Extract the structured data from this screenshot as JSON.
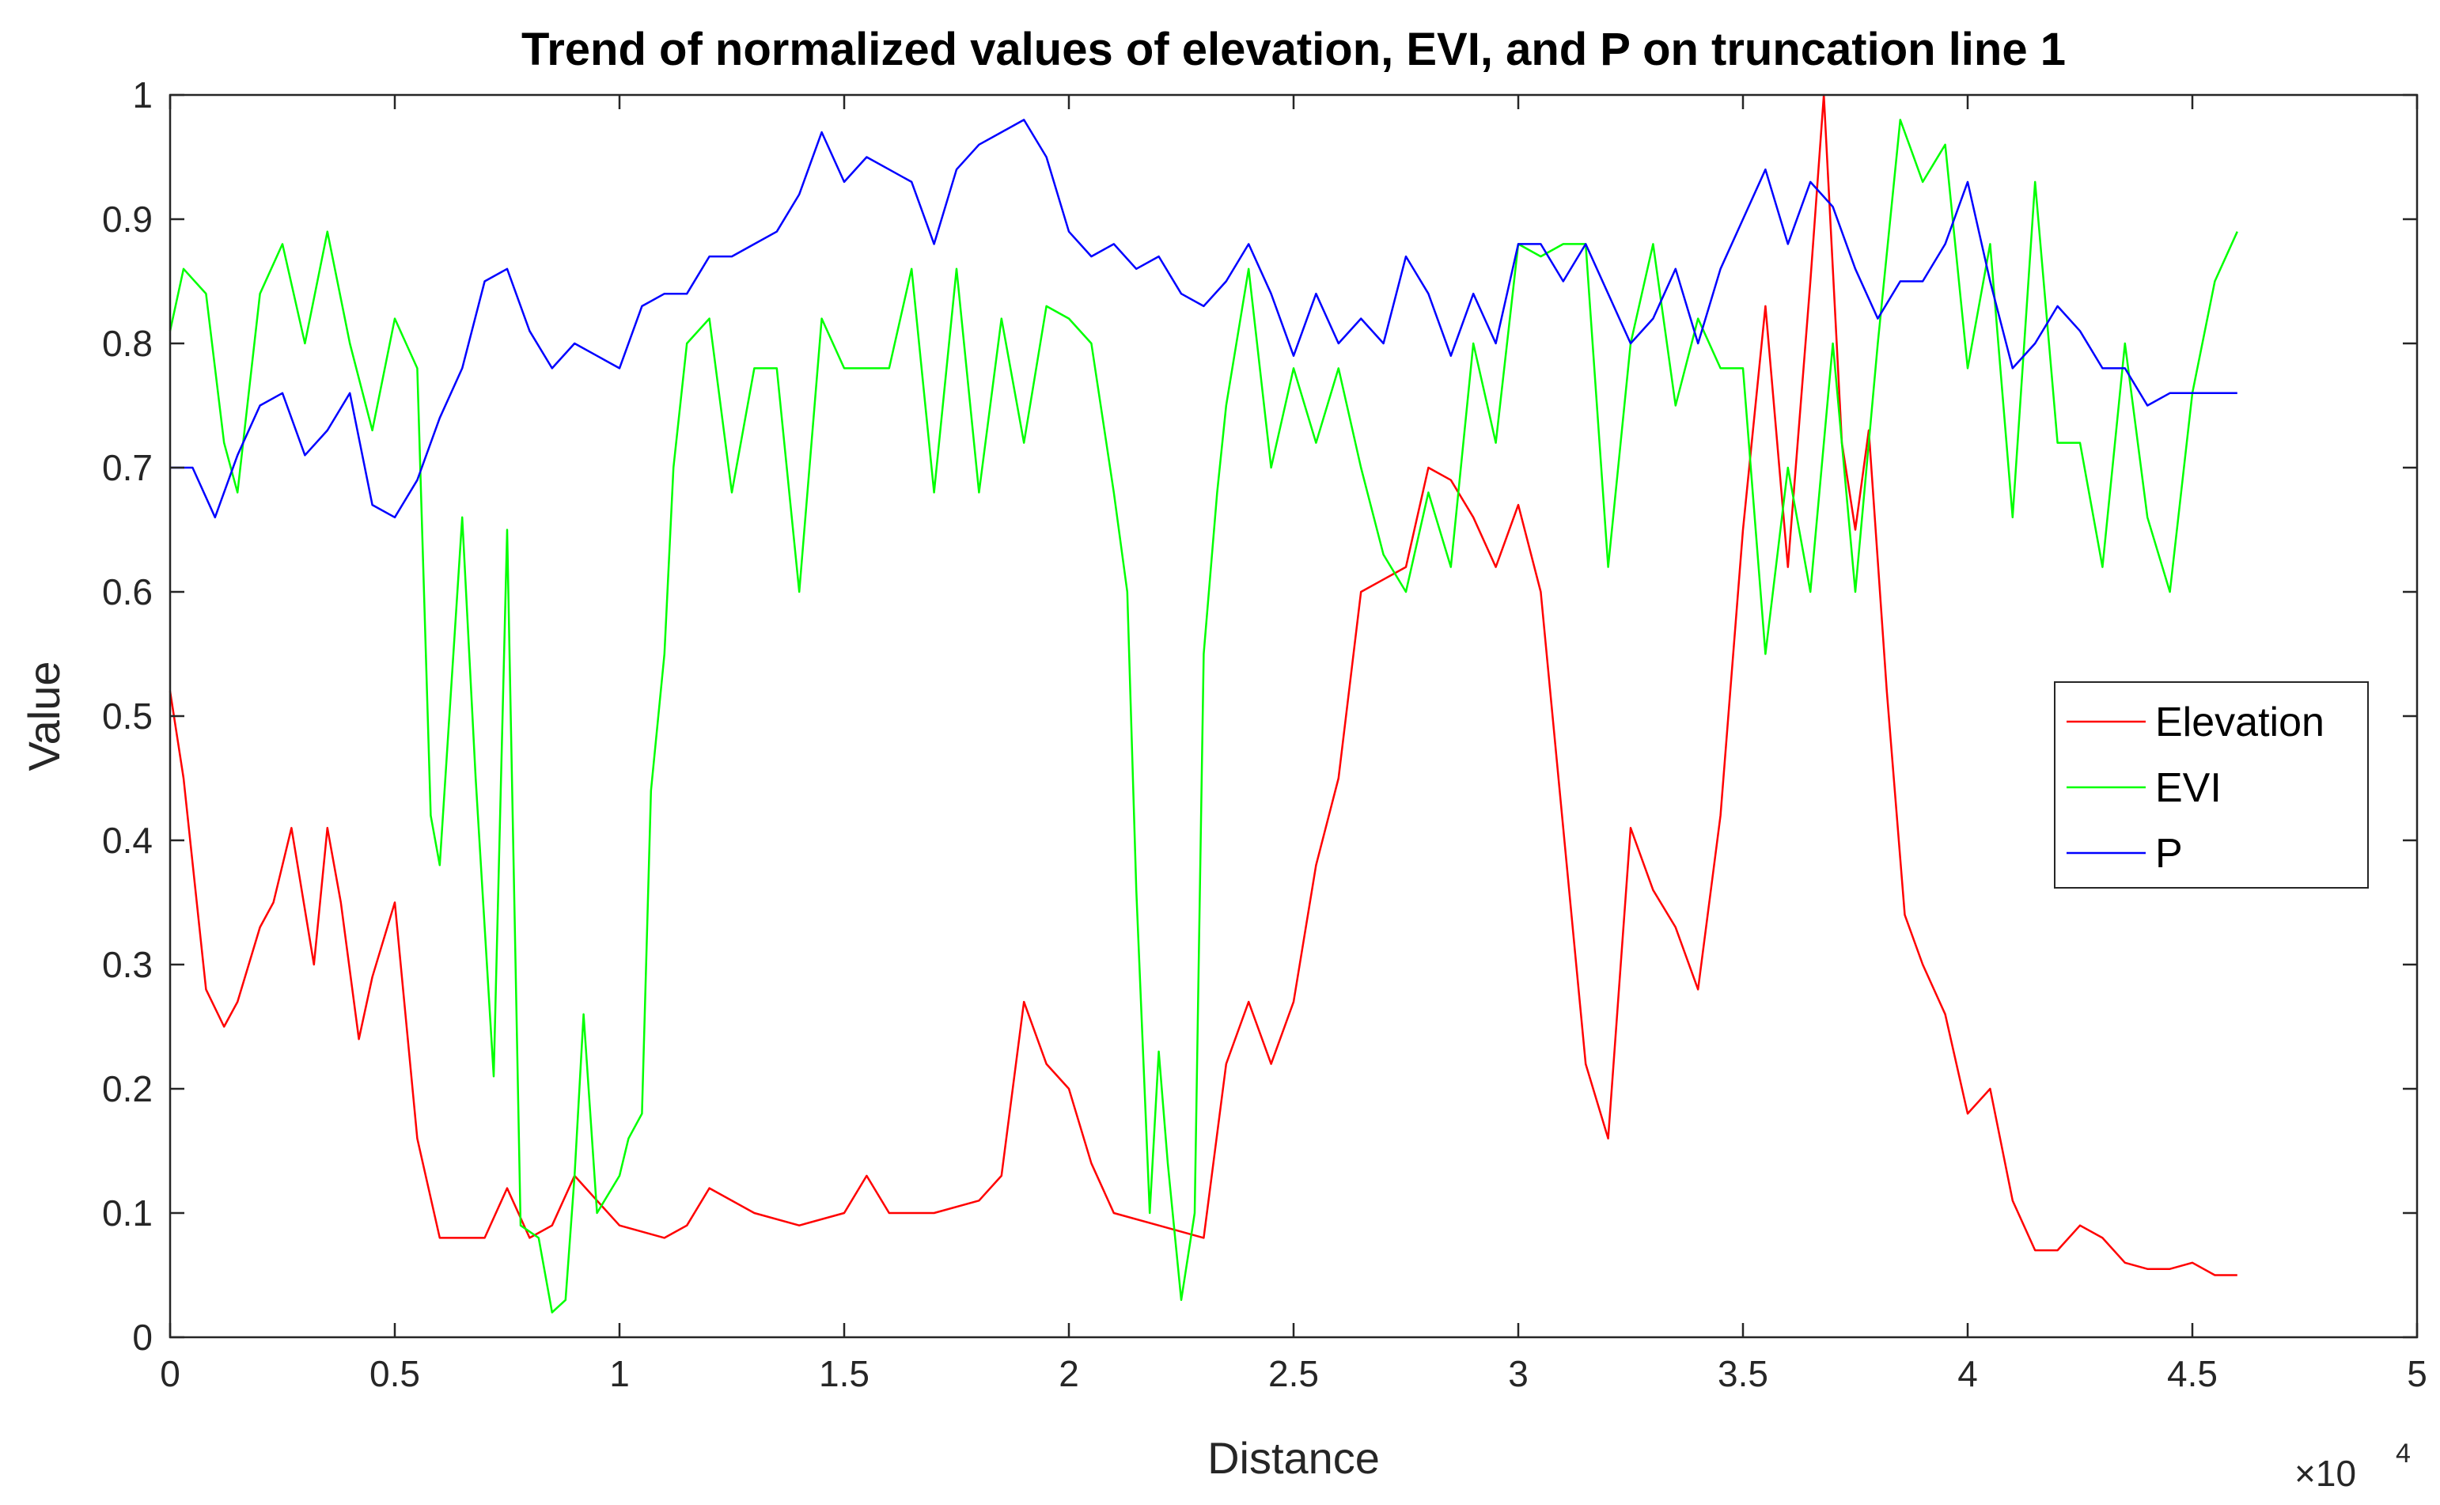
{
  "chart_data": {
    "type": "line",
    "title": "Trend of normalized values of elevation, EVI, and P on truncation line 1",
    "xlabel": "Distance",
    "ylabel": "Value",
    "x_exponent_label": "×10",
    "x_exponent_power": "4",
    "xlim": [
      0,
      5
    ],
    "ylim": [
      0,
      1
    ],
    "x_ticks": [
      0,
      0.5,
      1,
      1.5,
      2,
      2.5,
      3,
      3.5,
      4,
      4.5,
      5
    ],
    "x_tick_labels": [
      "0",
      "0.5",
      "1",
      "1.5",
      "2",
      "2.5",
      "3",
      "3.5",
      "4",
      "4.5",
      "5"
    ],
    "y_ticks": [
      0,
      0.1,
      0.2,
      0.3,
      0.4,
      0.5,
      0.6,
      0.7,
      0.8,
      0.9,
      1
    ],
    "y_tick_labels": [
      "0",
      "0.1",
      "0.2",
      "0.3",
      "0.4",
      "0.5",
      "0.6",
      "0.7",
      "0.8",
      "0.9",
      "1"
    ],
    "grid": false,
    "legend_position": "right",
    "x_units_note": "Distance values in units of 10^4",
    "series": [
      {
        "name": "Elevation",
        "color": "#ff0000",
        "x": [
          0,
          0.03,
          0.08,
          0.12,
          0.15,
          0.2,
          0.23,
          0.27,
          0.32,
          0.35,
          0.38,
          0.42,
          0.45,
          0.5,
          0.55,
          0.6,
          0.65,
          0.7,
          0.75,
          0.8,
          0.85,
          0.9,
          1.0,
          1.1,
          1.15,
          1.2,
          1.3,
          1.4,
          1.5,
          1.55,
          1.6,
          1.7,
          1.8,
          1.85,
          1.9,
          1.95,
          2.0,
          2.05,
          2.1,
          2.2,
          2.3,
          2.35,
          2.4,
          2.45,
          2.5,
          2.55,
          2.6,
          2.65,
          2.7,
          2.75,
          2.8,
          2.85,
          2.9,
          2.95,
          3.0,
          3.05,
          3.1,
          3.15,
          3.2,
          3.25,
          3.3,
          3.35,
          3.4,
          3.45,
          3.5,
          3.55,
          3.6,
          3.65,
          3.68,
          3.72,
          3.75,
          3.78,
          3.82,
          3.86,
          3.9,
          3.95,
          4.0,
          4.05,
          4.1,
          4.15,
          4.2,
          4.25,
          4.3,
          4.35,
          4.4,
          4.45,
          4.5,
          4.55,
          4.6
        ],
        "y": [
          0.52,
          0.45,
          0.28,
          0.25,
          0.27,
          0.33,
          0.35,
          0.41,
          0.3,
          0.41,
          0.35,
          0.24,
          0.29,
          0.35,
          0.16,
          0.08,
          0.08,
          0.08,
          0.12,
          0.08,
          0.09,
          0.13,
          0.09,
          0.08,
          0.09,
          0.12,
          0.1,
          0.09,
          0.1,
          0.13,
          0.1,
          0.1,
          0.11,
          0.13,
          0.27,
          0.22,
          0.2,
          0.14,
          0.1,
          0.09,
          0.08,
          0.22,
          0.27,
          0.22,
          0.27,
          0.38,
          0.45,
          0.6,
          0.61,
          0.62,
          0.7,
          0.69,
          0.66,
          0.62,
          0.67,
          0.6,
          0.41,
          0.22,
          0.16,
          0.41,
          0.36,
          0.33,
          0.28,
          0.42,
          0.65,
          0.83,
          0.62,
          0.85,
          1.0,
          0.72,
          0.65,
          0.73,
          0.52,
          0.34,
          0.3,
          0.26,
          0.18,
          0.2,
          0.11,
          0.07,
          0.07,
          0.09,
          0.08,
          0.06,
          0.055,
          0.055,
          0.06,
          0.05,
          0.05
        ]
      },
      {
        "name": "EVI",
        "color": "#00ff00",
        "x": [
          0,
          0.03,
          0.08,
          0.12,
          0.15,
          0.2,
          0.25,
          0.3,
          0.35,
          0.4,
          0.45,
          0.5,
          0.55,
          0.58,
          0.6,
          0.65,
          0.68,
          0.72,
          0.75,
          0.78,
          0.82,
          0.85,
          0.88,
          0.9,
          0.92,
          0.95,
          1.0,
          1.02,
          1.05,
          1.07,
          1.1,
          1.12,
          1.15,
          1.2,
          1.25,
          1.3,
          1.35,
          1.4,
          1.45,
          1.5,
          1.55,
          1.6,
          1.65,
          1.7,
          1.75,
          1.8,
          1.85,
          1.9,
          1.95,
          2.0,
          2.05,
          2.1,
          2.13,
          2.15,
          2.18,
          2.2,
          2.22,
          2.25,
          2.28,
          2.3,
          2.33,
          2.35,
          2.4,
          2.45,
          2.5,
          2.55,
          2.6,
          2.65,
          2.7,
          2.75,
          2.8,
          2.85,
          2.9,
          2.95,
          3.0,
          3.05,
          3.1,
          3.15,
          3.2,
          3.25,
          3.3,
          3.35,
          3.4,
          3.45,
          3.5,
          3.55,
          3.6,
          3.65,
          3.7,
          3.75,
          3.8,
          3.85,
          3.9,
          3.95,
          4.0,
          4.05,
          4.1,
          4.15,
          4.2,
          4.25,
          4.3,
          4.35,
          4.4,
          4.45,
          4.5,
          4.55,
          4.6
        ],
        "y": [
          0.81,
          0.86,
          0.84,
          0.72,
          0.68,
          0.84,
          0.88,
          0.8,
          0.89,
          0.8,
          0.73,
          0.82,
          0.78,
          0.42,
          0.38,
          0.66,
          0.45,
          0.21,
          0.65,
          0.09,
          0.08,
          0.02,
          0.03,
          0.13,
          0.26,
          0.1,
          0.13,
          0.16,
          0.18,
          0.44,
          0.55,
          0.7,
          0.8,
          0.82,
          0.68,
          0.78,
          0.78,
          0.6,
          0.82,
          0.78,
          0.78,
          0.78,
          0.86,
          0.68,
          0.86,
          0.68,
          0.82,
          0.72,
          0.83,
          0.82,
          0.8,
          0.68,
          0.6,
          0.36,
          0.1,
          0.23,
          0.14,
          0.03,
          0.1,
          0.55,
          0.68,
          0.75,
          0.86,
          0.7,
          0.78,
          0.72,
          0.78,
          0.7,
          0.63,
          0.6,
          0.68,
          0.62,
          0.8,
          0.72,
          0.88,
          0.87,
          0.88,
          0.88,
          0.62,
          0.8,
          0.88,
          0.75,
          0.82,
          0.78,
          0.78,
          0.55,
          0.7,
          0.6,
          0.8,
          0.6,
          0.8,
          0.98,
          0.93,
          0.96,
          0.78,
          0.88,
          0.66,
          0.93,
          0.72,
          0.72,
          0.62,
          0.8,
          0.66,
          0.6,
          0.76,
          0.85,
          0.89
        ]
      },
      {
        "name": "P",
        "color": "#0000ff",
        "x": [
          0,
          0.05,
          0.1,
          0.15,
          0.2,
          0.25,
          0.3,
          0.35,
          0.4,
          0.45,
          0.5,
          0.55,
          0.6,
          0.65,
          0.7,
          0.75,
          0.8,
          0.85,
          0.9,
          0.95,
          1.0,
          1.05,
          1.1,
          1.15,
          1.2,
          1.25,
          1.3,
          1.35,
          1.4,
          1.45,
          1.5,
          1.55,
          1.6,
          1.65,
          1.7,
          1.75,
          1.8,
          1.85,
          1.9,
          1.95,
          2.0,
          2.05,
          2.1,
          2.15,
          2.2,
          2.25,
          2.3,
          2.35,
          2.4,
          2.45,
          2.5,
          2.55,
          2.6,
          2.65,
          2.7,
          2.75,
          2.8,
          2.85,
          2.9,
          2.95,
          3.0,
          3.05,
          3.1,
          3.15,
          3.2,
          3.25,
          3.3,
          3.35,
          3.4,
          3.45,
          3.5,
          3.55,
          3.6,
          3.65,
          3.7,
          3.75,
          3.8,
          3.85,
          3.9,
          3.95,
          4.0,
          4.05,
          4.1,
          4.15,
          4.2,
          4.25,
          4.3,
          4.35,
          4.4,
          4.45,
          4.5,
          4.55,
          4.6
        ],
        "y": [
          0.7,
          0.7,
          0.66,
          0.71,
          0.75,
          0.76,
          0.71,
          0.73,
          0.76,
          0.67,
          0.66,
          0.69,
          0.74,
          0.78,
          0.85,
          0.86,
          0.81,
          0.78,
          0.8,
          0.79,
          0.78,
          0.83,
          0.84,
          0.84,
          0.87,
          0.87,
          0.88,
          0.89,
          0.92,
          0.97,
          0.93,
          0.95,
          0.94,
          0.93,
          0.88,
          0.94,
          0.96,
          0.97,
          0.98,
          0.95,
          0.89,
          0.87,
          0.88,
          0.86,
          0.87,
          0.84,
          0.83,
          0.85,
          0.88,
          0.84,
          0.79,
          0.84,
          0.8,
          0.82,
          0.8,
          0.87,
          0.84,
          0.79,
          0.84,
          0.8,
          0.88,
          0.88,
          0.85,
          0.88,
          0.84,
          0.8,
          0.82,
          0.86,
          0.8,
          0.86,
          0.9,
          0.94,
          0.88,
          0.93,
          0.91,
          0.86,
          0.82,
          0.85,
          0.85,
          0.88,
          0.93,
          0.85,
          0.78,
          0.8,
          0.83,
          0.81,
          0.78,
          0.78,
          0.75,
          0.76,
          0.76,
          0.76,
          0.76
        ]
      }
    ]
  }
}
